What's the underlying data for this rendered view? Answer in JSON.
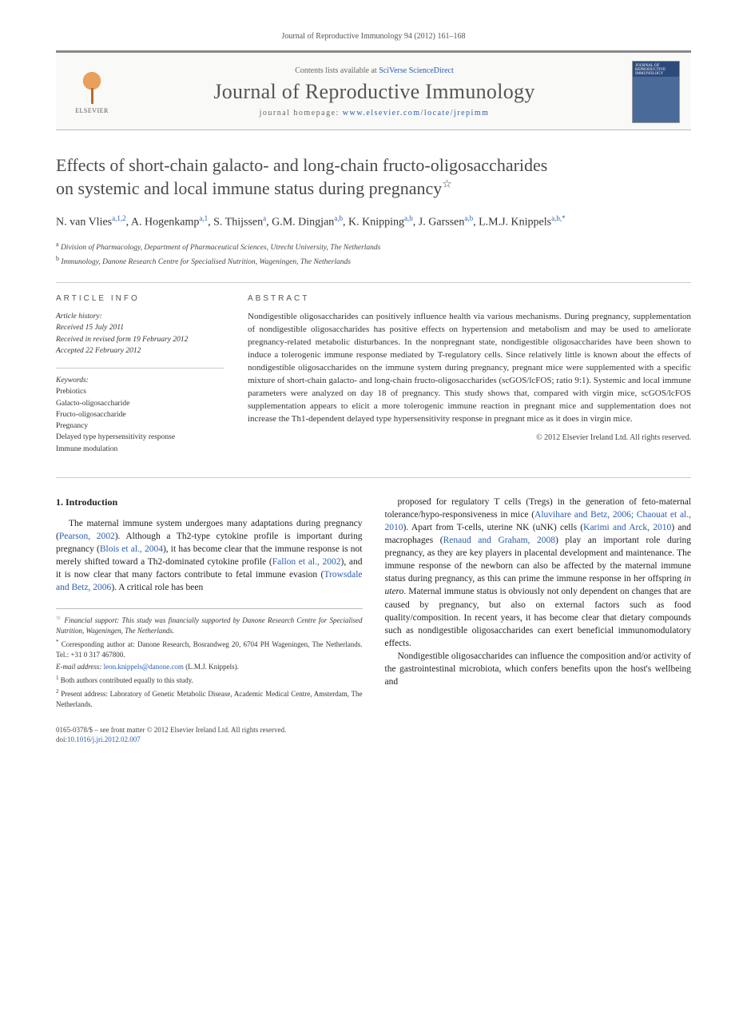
{
  "journal_ref": "Journal of Reproductive Immunology 94 (2012) 161–168",
  "header": {
    "contents_prefix": "Contents lists available at ",
    "contents_link": "SciVerse ScienceDirect",
    "journal_title": "Journal of Reproductive Immunology",
    "homepage_prefix": "journal homepage: ",
    "homepage_link": "www.elsevier.com/locate/jrepimm",
    "publisher_name": "ELSEVIER",
    "cover_text": "JOURNAL OF REPRODUCTIVE IMMUNOLOGY"
  },
  "article_title_line1": "Effects of short-chain galacto- and long-chain fructo-oligosaccharides",
  "article_title_line2": "on systemic and local immune status during pregnancy",
  "authors_html": "N. van Vlies<sup>a,1,2</sup>, A. Hogenkamp<sup>a,1</sup>, S. Thijssen<sup>a</sup>, G.M. Dingjan<sup>a,b</sup>, K. Knipping<sup>a,b</sup>, J.&nbsp;Garssen<sup>a,b</sup>, L.M.J. Knippels<sup>a,b,*</sup>",
  "affiliations": {
    "a": "Division of Pharmacology, Department of Pharmaceutical Sciences, Utrecht University, The Netherlands",
    "b": "Immunology, Danone Research Centre for Specialised Nutrition, Wageningen, The Netherlands"
  },
  "article_info": {
    "label": "ARTICLE INFO",
    "history_label": "Article history:",
    "received": "Received 15 July 2011",
    "revised": "Received in revised form 19 February 2012",
    "accepted": "Accepted 22 February 2012",
    "keywords_label": "Keywords:",
    "keywords": [
      "Prebiotics",
      "Galacto-oligosaccharide",
      "Fructo-oligosaccharide",
      "Pregnancy",
      "Delayed type hypersensitivity response",
      "Immune modulation"
    ]
  },
  "abstract": {
    "label": "ABSTRACT",
    "text": "Nondigestible oligosaccharides can positively influence health via various mechanisms. During pregnancy, supplementation of nondigestible oligosaccharides has positive effects on hypertension and metabolism and may be used to ameliorate pregnancy-related metabolic disturbances. In the nonpregnant state, nondigestible oligosaccharides have been shown to induce a tolerogenic immune response mediated by T-regulatory cells. Since relatively little is known about the effects of nondigestible oligosaccharides on the immune system during pregnancy, pregnant mice were supplemented with a specific mixture of short-chain galacto- and long-chain fructo-oligosaccharides (scGOS/lcFOS; ratio 9:1). Systemic and local immune parameters were analyzed on day 18 of pregnancy. This study shows that, compared with virgin mice, scGOS/lcFOS supplementation appears to elicit a more tolerogenic immune reaction in pregnant mice and supplementation does not increase the Th1-dependent delayed type hypersensitivity response in pregnant mice as it does in virgin mice.",
    "copyright": "© 2012 Elsevier Ireland Ltd. All rights reserved."
  },
  "body": {
    "section_heading": "1.  Introduction",
    "col1_p1": "The maternal immune system undergoes many adaptations during pregnancy (<a>Pearson, 2002</a>). Although a Th2-type cytokine profile is important during pregnancy (<a>Blois et al., 2004</a>), it has become clear that the immune response is not merely shifted toward a Th2-dominated cytokine profile (<a>Fallon et al., 2002</a>), and it is now clear that many factors contribute to fetal immune evasion (<a>Trowsdale and Betz, 2006</a>). A critical role has been",
    "col2_p1": "proposed for regulatory T cells (Tregs) in the generation of feto-maternal tolerance/hypo-responsiveness in mice (<a>Aluvihare and Betz, 2006; Chaouat et al., 2010</a>). Apart from T-cells, uterine NK (uNK) cells (<a>Karimi and Arck, 2010</a>) and macrophages (<a>Renaud and Graham, 2008</a>) play an important role during pregnancy, as they are key players in placental development and maintenance. The immune response of the newborn can also be affected by the maternal immune status during pregnancy, as this can prime the immune response in her offspring <i>in utero</i>. Maternal immune status is obviously not only dependent on changes that are caused by pregnancy, but also on external factors such as food quality/composition. In recent years, it has become clear that dietary compounds such as nondigestible oligosaccharides can exert beneficial immunomodulatory effects.",
    "col2_p2": "Nondigestible oligosaccharides can influence the composition and/or activity of the gastrointestinal microbiota, which confers benefits upon the host's wellbeing and"
  },
  "footnotes": {
    "star": "Financial support: This study was financially supported by Danone Research Centre for Specialised Nutrition, Wageningen, The Netherlands.",
    "corr": "Corresponding author at: Danone Research, Bosrandweg 20, 6704 PH Wageningen, The Netherlands. Tel.: +31 0 317 467800.",
    "email_label": "E-mail address:",
    "email": "leon.knippels@danone.com",
    "email_suffix": "(L.M.J. Knippels).",
    "fn1": "Both authors contributed equally to this study.",
    "fn2": "Present address: Laboratory of Genetic Metabolic Disease, Academic Medical Centre, Amsterdam, The Netherlands."
  },
  "footer": {
    "line1": "0165-0378/$ – see front matter © 2012 Elsevier Ireland Ltd. All rights reserved.",
    "doi_prefix": "doi:",
    "doi": "10.1016/j.jri.2012.02.007"
  }
}
